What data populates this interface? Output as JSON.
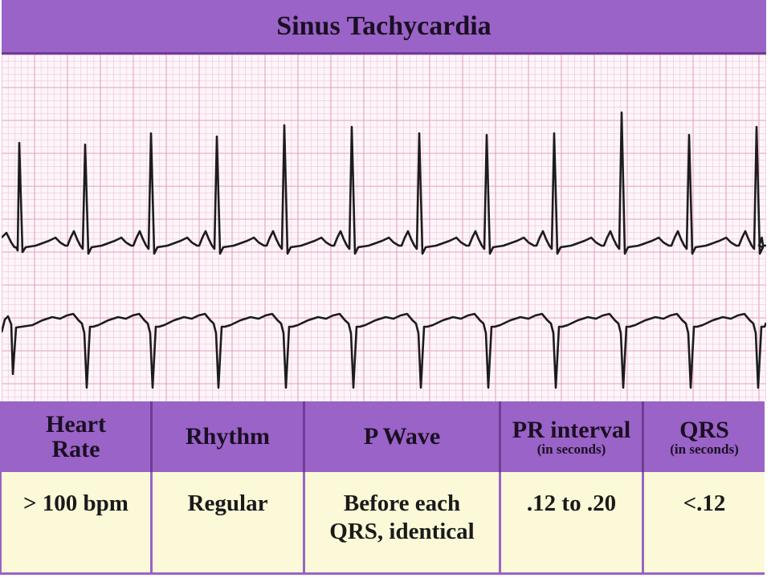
{
  "title": "Sinus Tachycardia",
  "colors": {
    "header_bg": "#9a63c7",
    "grid_bg": "#fdf6fa",
    "grid_line": "#f2c2d8",
    "grid_line_major": "#e79fbf",
    "trace": "#1c1c1c",
    "data_bg": "#fbf9d8"
  },
  "ecg": {
    "leads": 2,
    "lead1_qrs_direction": "upright",
    "lead2_qrs_direction": "inverted",
    "beats_per_strip": 12
  },
  "table": {
    "headers": [
      {
        "title": "Heart Rate",
        "lines": [
          "Heart",
          "Rate"
        ],
        "sub": ""
      },
      {
        "title": "Rhythm",
        "lines": [
          "Rhythm"
        ],
        "sub": ""
      },
      {
        "title": "P Wave",
        "lines": [
          "P Wave"
        ],
        "sub": ""
      },
      {
        "title": "PR interval",
        "lines": [
          "PR interval"
        ],
        "sub": "(in seconds)"
      },
      {
        "title": "QRS",
        "lines": [
          "QRS"
        ],
        "sub": "(in seconds)"
      }
    ],
    "values": [
      {
        "lines": [
          "> 100 bpm"
        ]
      },
      {
        "lines": [
          "Regular"
        ]
      },
      {
        "lines": [
          "Before each",
          "QRS, identical"
        ]
      },
      {
        "lines": [
          ".12 to .20"
        ]
      },
      {
        "lines": [
          "<.12"
        ]
      }
    ]
  }
}
